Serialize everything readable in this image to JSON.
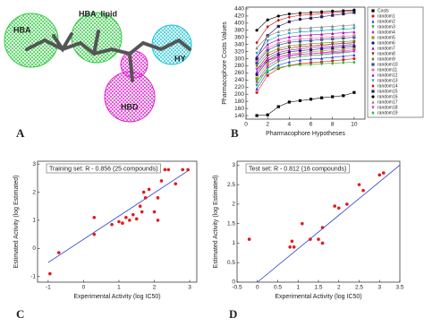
{
  "panel_labels": [
    "A",
    "B",
    "C",
    "D"
  ],
  "pharmacophore": {
    "features": [
      "HBA",
      "HBA_lipid",
      "HBD",
      "HY"
    ]
  },
  "chart_data": [
    {
      "type": "line",
      "xlabel": "Pharmacophore Hypotheses",
      "ylabel": "Pharmacophore Costs Values",
      "x": [
        1,
        2,
        3,
        4,
        5,
        6,
        7,
        8,
        9,
        10
      ],
      "xlim": [
        0,
        11
      ],
      "xticks": [
        0,
        2,
        4,
        6,
        8,
        10
      ],
      "ylim": [
        130,
        445
      ],
      "yticks": [
        140,
        160,
        180,
        200,
        220,
        240,
        260,
        280,
        300,
        320,
        340,
        360,
        380,
        400,
        420,
        440
      ],
      "series": [
        {
          "name": "Costs",
          "color": "#000000",
          "values": [
            140,
            142,
            165,
            178,
            182,
            186,
            190,
            193,
            196,
            205
          ]
        },
        {
          "name": "random1",
          "color": "#e41a1c",
          "values": [
            205,
            253,
            272,
            281,
            286,
            289,
            291,
            294,
            297,
            300
          ]
        },
        {
          "name": "random2",
          "color": "#1f3fd0",
          "values": [
            215,
            263,
            282,
            291,
            296,
            299,
            301,
            304,
            307,
            310
          ]
        },
        {
          "name": "random3",
          "color": "#1a9a2a",
          "values": [
            225,
            273,
            292,
            301,
            306,
            309,
            311,
            314,
            317,
            320
          ]
        },
        {
          "name": "random4",
          "color": "#d020d0",
          "values": [
            235,
            280,
            298,
            307,
            312,
            314,
            317,
            320,
            322,
            325
          ]
        },
        {
          "name": "random5",
          "color": "#9a9a10",
          "values": [
            245,
            288,
            305,
            313,
            317,
            320,
            322,
            325,
            327,
            330
          ]
        },
        {
          "name": "random6",
          "color": "#10108a",
          "values": [
            255,
            295,
            311,
            319,
            323,
            325,
            328,
            330,
            333,
            335
          ]
        },
        {
          "name": "random7",
          "color": "#7a1aa0",
          "values": [
            262,
            301,
            317,
            324,
            328,
            331,
            333,
            335,
            338,
            340
          ]
        },
        {
          "name": "random8",
          "color": "#8a1010",
          "values": [
            270,
            308,
            323,
            330,
            334,
            336,
            338,
            341,
            343,
            345
          ]
        },
        {
          "name": "random9",
          "color": "#6a7a10",
          "values": [
            280,
            315,
            329,
            336,
            340,
            342,
            344,
            346,
            348,
            350
          ]
        },
        {
          "name": "random10",
          "color": "#2050a0",
          "values": [
            288,
            324,
            338,
            346,
            349,
            351,
            354,
            356,
            358,
            360
          ]
        },
        {
          "name": "random11",
          "color": "#e070a0",
          "values": [
            295,
            330,
            344,
            351,
            355,
            357,
            359,
            361,
            363,
            365
          ]
        },
        {
          "name": "random12",
          "color": "#b000b0",
          "values": [
            305,
            340,
            354,
            361,
            365,
            367,
            369,
            371,
            373,
            375
          ]
        },
        {
          "name": "random13",
          "color": "#10a0b0",
          "values": [
            315,
            350,
            364,
            371,
            375,
            377,
            379,
            381,
            383,
            385
          ]
        },
        {
          "name": "random14",
          "color": "#d01010",
          "values": [
            345,
            390,
            408,
            417,
            422,
            424,
            427,
            430,
            432,
            435
          ]
        },
        {
          "name": "random15",
          "color": "#202060",
          "values": [
            300,
            365,
            391,
            404,
            411,
            414,
            418,
            422,
            426,
            430
          ]
        },
        {
          "name": "random16",
          "color": "#000000",
          "values": [
            380,
            409,
            420,
            426,
            428,
            430,
            432,
            434,
            435,
            437
          ]
        },
        {
          "name": "random17",
          "color": "#808080",
          "values": [
            330,
            363,
            376,
            382,
            385,
            387,
            389,
            391,
            393,
            395
          ]
        },
        {
          "name": "random18",
          "color": "#e020e0",
          "values": [
            270,
            295,
            305,
            310,
            313,
            314,
            316,
            317,
            319,
            320
          ]
        },
        {
          "name": "random19",
          "color": "#20c020",
          "values": [
            240,
            265,
            275,
            280,
            283,
            284,
            286,
            287,
            289,
            290
          ]
        }
      ]
    },
    {
      "type": "scatter",
      "title": "Training set: R - 0.856 (25 compounds)",
      "xlabel": "Experimental Activity (log IC50)",
      "ylabel": "Estimated Activity (log Estimated)",
      "color": "#e41a1c",
      "fit_color": "#1f3fd0",
      "x": [
        -0.95,
        -0.7,
        0.3,
        0.3,
        0.8,
        1.0,
        1.1,
        1.2,
        1.3,
        1.4,
        1.5,
        1.6,
        1.65,
        1.7,
        1.75,
        1.85,
        2.0,
        2.1,
        2.1,
        2.2,
        2.3,
        2.4,
        2.6,
        2.8,
        2.95
      ],
      "values": [
        -0.9,
        -0.15,
        0.5,
        1.1,
        0.85,
        0.95,
        0.9,
        1.1,
        1.0,
        1.2,
        1.05,
        1.5,
        1.3,
        2.0,
        1.8,
        2.1,
        1.3,
        1.0,
        1.8,
        2.4,
        2.8,
        2.8,
        2.3,
        2.8,
        2.8
      ],
      "fit_x": [
        -1,
        3
      ],
      "fit_y": [
        -0.5,
        2.8
      ],
      "xlim": [
        -1.3,
        3.2
      ],
      "xticks": [
        -1,
        0,
        1,
        2,
        3
      ],
      "ylim": [
        -1.2,
        3.1
      ],
      "yticks": [
        -1,
        0,
        1,
        2,
        3
      ]
    },
    {
      "type": "scatter",
      "title": "Test set: R - 0.812 (16 compounds)",
      "xlabel": "Experimental Activity (log IC50)",
      "ylabel": "Estimated Activity (log Estimated)",
      "color": "#e41a1c",
      "fit_color": "#1f3fd0",
      "x": [
        -0.2,
        0.8,
        0.85,
        0.9,
        1.1,
        1.3,
        1.5,
        1.6,
        1.6,
        1.9,
        2.0,
        2.2,
        2.5,
        2.6,
        3.0,
        3.1
      ],
      "values": [
        1.1,
        0.9,
        1.05,
        0.9,
        1.5,
        1.1,
        1.1,
        1.4,
        1.0,
        1.95,
        1.9,
        2.0,
        2.5,
        2.35,
        2.75,
        2.8
      ],
      "fit_x": [
        0,
        3.5
      ],
      "fit_y": [
        0,
        3.0
      ],
      "xlim": [
        -0.5,
        3.5
      ],
      "xticks": [
        -0.5,
        0,
        0.5,
        1,
        1.5,
        2,
        2.5,
        3,
        3.5
      ],
      "ylim": [
        0,
        3.1
      ],
      "yticks": [
        0,
        0.5,
        1,
        1.5,
        2,
        2.5,
        3
      ]
    }
  ]
}
